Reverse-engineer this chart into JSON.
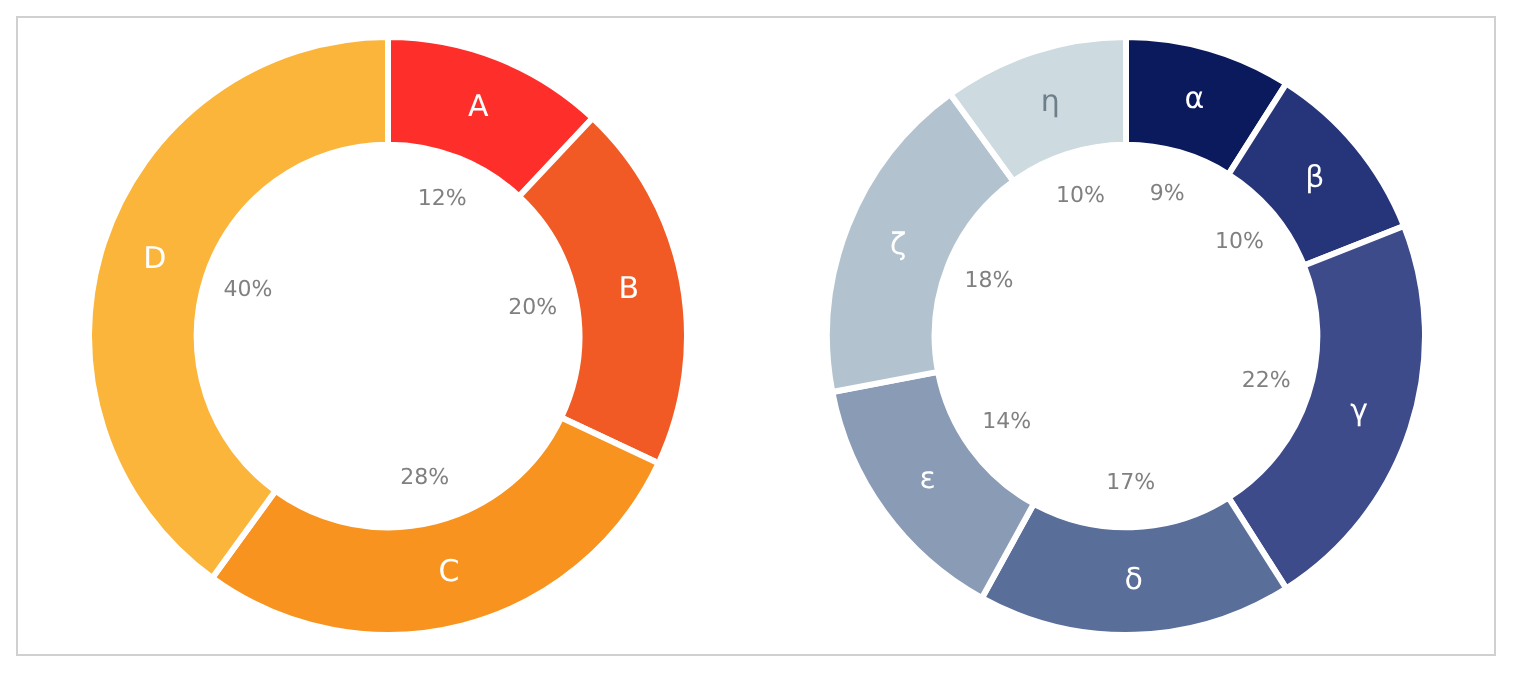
{
  "chart_data": [
    {
      "type": "donut",
      "categories": [
        "A",
        "B",
        "C",
        "D"
      ],
      "values": [
        12,
        20,
        28,
        40
      ],
      "colors": [
        "#fe2f2a",
        "#f15a24",
        "#f7931e",
        "#fbb53b"
      ],
      "value_labels": [
        "12%",
        "20%",
        "28%",
        "40%"
      ],
      "legend": false
    },
    {
      "type": "donut",
      "categories": [
        "α",
        "β",
        "γ",
        "δ",
        "ε",
        "ζ",
        "η"
      ],
      "values": [
        9,
        10,
        22,
        17,
        14,
        18,
        10
      ],
      "colors": [
        "#0b1a5c",
        "#26357a",
        "#3d4b8a",
        "#5a6e9a",
        "#8a9bb5",
        "#b2c3cf",
        "#cddadf"
      ],
      "value_labels": [
        "9%",
        "10%",
        "22%",
        "17%",
        "14%",
        "18%",
        "10%"
      ],
      "legend": false
    }
  ]
}
